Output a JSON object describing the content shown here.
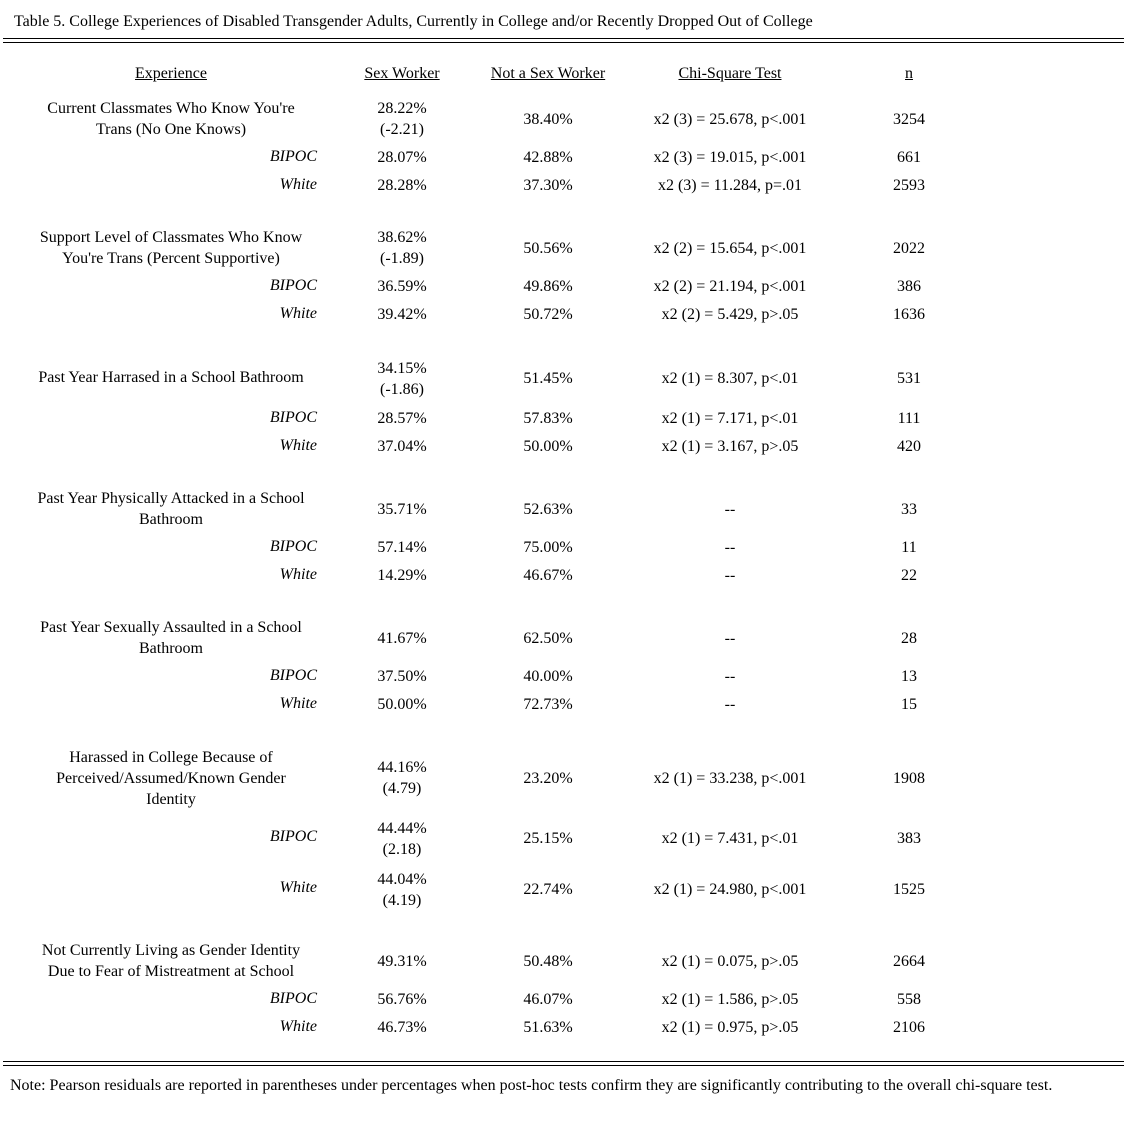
{
  "title": "Table 5. College Experiences of Disabled Transgender Adults, Currently in College and/or Recently Dropped Out of College",
  "note": "Note: Pearson residuals are reported in parentheses under percentages when post-hoc tests confirm they are significantly contributing to the overall chi-square test.",
  "table": {
    "headers": {
      "experience": "Experience",
      "sex_worker": "Sex Worker",
      "not_sex_worker": "Not a Sex Worker",
      "chi_square": "Chi-Square Test",
      "n": "n"
    },
    "groups": [
      {
        "main": {
          "experience": "Current Classmates Who Know You're\nTrans (No One Knows)",
          "sw": "28.22%",
          "sw_residual": "(-2.21)",
          "nsw": "38.40%",
          "chi": "x2 (3) = 25.678, p<.001",
          "n": "3254"
        },
        "bipoc": {
          "label": "BIPOC",
          "sw": "28.07%",
          "nsw": "42.88%",
          "chi": "x2 (3) = 19.015, p<.001",
          "n": "661"
        },
        "white": {
          "label": "White",
          "sw": "28.28%",
          "nsw": "37.30%",
          "chi": "x2 (3) = 11.284, p=.01",
          "n": "2593"
        }
      },
      {
        "main": {
          "experience": "Support Level of Classmates Who Know\nYou're Trans (Percent Supportive)",
          "sw": "38.62%",
          "sw_residual": "(-1.89)",
          "nsw": "50.56%",
          "chi": "x2 (2) = 15.654, p<.001",
          "n": "2022"
        },
        "bipoc": {
          "label": "BIPOC",
          "sw": "36.59%",
          "nsw": "49.86%",
          "chi": "x2 (2) = 21.194, p<.001",
          "n": "386"
        },
        "white": {
          "label": "White",
          "sw": "39.42%",
          "nsw": "50.72%",
          "chi": "x2 (2) = 5.429, p>.05",
          "n": "1636"
        }
      },
      {
        "main": {
          "experience": "Past Year Harrased in a School Bathroom",
          "sw": "34.15%",
          "sw_residual": "(-1.86)",
          "nsw": "51.45%",
          "chi": "x2 (1) = 8.307, p<.01",
          "n": "531"
        },
        "bipoc": {
          "label": "BIPOC",
          "sw": "28.57%",
          "nsw": "57.83%",
          "chi": "x2 (1) = 7.171, p<.01",
          "n": "111"
        },
        "white": {
          "label": "White",
          "sw": "37.04%",
          "nsw": "50.00%",
          "chi": "x2 (1) = 3.167, p>.05",
          "n": "420"
        }
      },
      {
        "main": {
          "experience": "Past Year Physically Attacked in a School\nBathroom",
          "sw": "35.71%",
          "nsw": "52.63%",
          "chi": "--",
          "n": "33"
        },
        "bipoc": {
          "label": "BIPOC",
          "sw": "57.14%",
          "nsw": "75.00%",
          "chi": "--",
          "n": "11"
        },
        "white": {
          "label": "White",
          "sw": "14.29%",
          "nsw": "46.67%",
          "chi": "--",
          "n": "22"
        }
      },
      {
        "main": {
          "experience": "Past Year Sexually Assaulted in a School\nBathroom",
          "sw": "41.67%",
          "nsw": "62.50%",
          "chi": "--",
          "n": "28"
        },
        "bipoc": {
          "label": "BIPOC",
          "sw": "37.50%",
          "nsw": "40.00%",
          "chi": "--",
          "n": "13"
        },
        "white": {
          "label": "White",
          "sw": "50.00%",
          "nsw": "72.73%",
          "chi": "--",
          "n": "15"
        }
      },
      {
        "main": {
          "experience": "Harassed in College Because of\nPerceived/Assumed/Known Gender\nIdentity",
          "sw": "44.16%",
          "sw_residual": "(4.79)",
          "nsw": "23.20%",
          "chi": "x2 (1) = 33.238, p<.001",
          "n": "1908"
        },
        "bipoc": {
          "label": "BIPOC",
          "sw": "44.44%",
          "sw_residual": "(2.18)",
          "nsw": "25.15%",
          "chi": "x2 (1) = 7.431, p<.01",
          "n": "383"
        },
        "white": {
          "label": "White",
          "sw": "44.04%",
          "sw_residual": "(4.19)",
          "nsw": "22.74%",
          "chi": "x2 (1) = 24.980, p<.001",
          "n": "1525"
        }
      },
      {
        "main": {
          "experience": "Not Currently Living as Gender Identity\nDue to Fear of Mistreatment at School",
          "sw": "49.31%",
          "nsw": "50.48%",
          "chi": "x2 (1) = 0.075, p>.05",
          "n": "2664"
        },
        "bipoc": {
          "label": "BIPOC",
          "sw": "56.76%",
          "nsw": "46.07%",
          "chi": "x2 (1) = 1.586, p>.05",
          "n": "558"
        },
        "white": {
          "label": "White",
          "sw": "46.73%",
          "nsw": "51.63%",
          "chi": "x2 (1) = 0.975, p>.05",
          "n": "2106"
        }
      }
    ]
  }
}
